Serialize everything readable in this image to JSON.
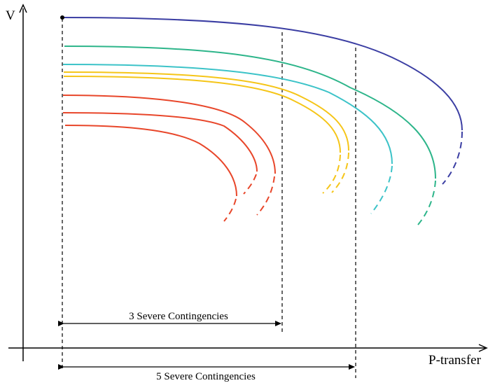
{
  "chart_data": {
    "type": "line",
    "title": "",
    "xlabel": "P-transfer",
    "ylabel": "V",
    "grid": false,
    "legend": "none",
    "colors": {
      "axis": "#000000",
      "base_case": "#3b3ea3",
      "green": "#2db58a",
      "cyan": "#3cc3c8",
      "yellow": "#f5c518",
      "red": "#e8462a"
    },
    "series": [
      {
        "color_key": "base_case"
      },
      {
        "color_key": "green"
      },
      {
        "color_key": "cyan"
      },
      {
        "color_key": "yellow"
      },
      {
        "color_key": "yellow"
      },
      {
        "color_key": "red"
      },
      {
        "color_key": "red"
      },
      {
        "color_key": "red"
      }
    ],
    "annotations": {
      "span_3": "3 Severe Contingencies",
      "span_5": "5 Severe Contingencies"
    }
  }
}
